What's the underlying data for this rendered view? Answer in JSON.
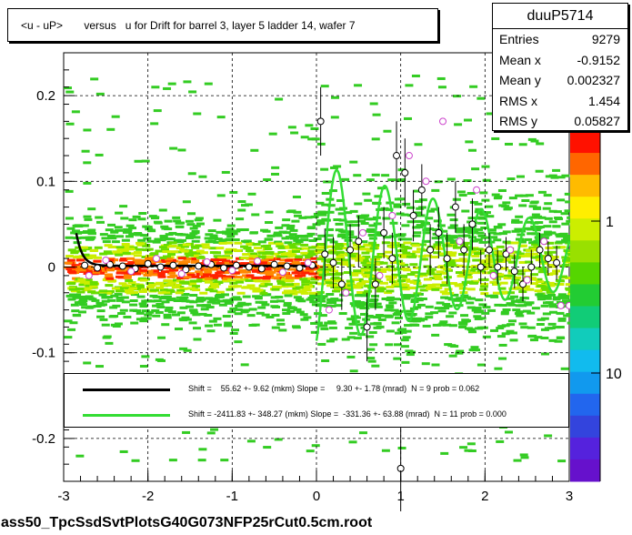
{
  "page": {
    "title": "<u - uP>       versus   u for Drift for barrel 3, layer 5 ladder 14, wafer 7",
    "footer": "ass50_TpcSsdSvtPlotsG40G073NFP25rCut0.5cm.root"
  },
  "stats": {
    "name": "duuP5714",
    "rows": [
      {
        "label": "Entries",
        "value": "9279"
      },
      {
        "label": "Mean x",
        "value": "-0.9152"
      },
      {
        "label": "Mean y",
        "value": "0.002327"
      },
      {
        "label": "RMS x",
        "value": "1.454"
      },
      {
        "label": "RMS y",
        "value": "0.05827"
      }
    ]
  },
  "legend": [
    {
      "color": "#000000",
      "text": "Shift =    55.62 +- 9.62 (mkm) Slope =     9.30 +- 1.78 (mrad)  N = 9 prob = 0.062"
    },
    {
      "color": "#33dd33",
      "text": "Shift = -2411.83 +- 348.27 (mkm) Slope =  -331.36 +- 63.88 (mrad)  N = 11 prob = 0.000"
    }
  ],
  "colors": {
    "black_fit": "#000000",
    "green_fit": "#33dd33",
    "profile_marker": "#cc44cc"
  },
  "chart_data": {
    "type": "scatter",
    "title": "<u - uP>       versus   u for Drift for barrel 3, layer 5 ladder 14, wafer 7",
    "xlabel": "",
    "ylabel": "",
    "xlim": [
      -3,
      3
    ],
    "ylim": [
      -0.25,
      0.25
    ],
    "x_ticks": [
      "-3",
      "-2",
      "-1",
      "0",
      "1",
      "2",
      "3"
    ],
    "y_ticks": [
      "-0.2",
      "-0.1",
      "0",
      "0.1",
      "0.2"
    ],
    "grid": true,
    "colorbar_ticks": [
      "1",
      "10"
    ],
    "colorbar_partial_label": "0",
    "profile_black": [
      {
        "x": -2.75,
        "y": 0.002,
        "e": 0.004
      },
      {
        "x": -2.6,
        "y": -0.001,
        "e": 0.003
      },
      {
        "x": -2.45,
        "y": 0.003,
        "e": 0.003
      },
      {
        "x": -2.3,
        "y": 0.001,
        "e": 0.003
      },
      {
        "x": -2.15,
        "y": -0.002,
        "e": 0.003
      },
      {
        "x": -2.0,
        "y": 0.004,
        "e": 0.003
      },
      {
        "x": -1.85,
        "y": 0.0,
        "e": 0.003
      },
      {
        "x": -1.7,
        "y": 0.002,
        "e": 0.003
      },
      {
        "x": -1.55,
        "y": -0.003,
        "e": 0.003
      },
      {
        "x": -1.4,
        "y": 0.001,
        "e": 0.003
      },
      {
        "x": -1.25,
        "y": 0.003,
        "e": 0.003
      },
      {
        "x": -1.1,
        "y": -0.001,
        "e": 0.003
      },
      {
        "x": -0.95,
        "y": 0.002,
        "e": 0.003
      },
      {
        "x": -0.8,
        "y": 0.0,
        "e": 0.003
      },
      {
        "x": -0.65,
        "y": -0.002,
        "e": 0.003
      },
      {
        "x": -0.5,
        "y": 0.003,
        "e": 0.003
      },
      {
        "x": -0.35,
        "y": 0.001,
        "e": 0.003
      },
      {
        "x": -0.2,
        "y": -0.001,
        "e": 0.003
      },
      {
        "x": -0.05,
        "y": 0.002,
        "e": 0.003
      },
      {
        "x": 0.05,
        "y": 0.17,
        "e": 0.04
      },
      {
        "x": 0.1,
        "y": 0.015,
        "e": 0.03
      },
      {
        "x": 0.2,
        "y": 0.005,
        "e": 0.03
      },
      {
        "x": 0.3,
        "y": -0.02,
        "e": 0.03
      },
      {
        "x": 0.4,
        "y": 0.02,
        "e": 0.03
      },
      {
        "x": 0.5,
        "y": 0.03,
        "e": 0.03
      },
      {
        "x": 0.6,
        "y": -0.07,
        "e": 0.04
      },
      {
        "x": 0.7,
        "y": -0.02,
        "e": 0.03
      },
      {
        "x": 0.8,
        "y": 0.04,
        "e": 0.03
      },
      {
        "x": 0.9,
        "y": 0.01,
        "e": 0.03
      },
      {
        "x": 0.95,
        "y": 0.13,
        "e": 0.04
      },
      {
        "x": 1.0,
        "y": -0.235,
        "e": 0.05
      },
      {
        "x": 1.05,
        "y": 0.11,
        "e": 0.04
      },
      {
        "x": 1.15,
        "y": 0.06,
        "e": 0.03
      },
      {
        "x": 1.25,
        "y": 0.09,
        "e": 0.03
      },
      {
        "x": 1.35,
        "y": 0.02,
        "e": 0.03
      },
      {
        "x": 1.45,
        "y": 0.04,
        "e": 0.03
      },
      {
        "x": 1.55,
        "y": 0.01,
        "e": 0.03
      },
      {
        "x": 1.65,
        "y": 0.07,
        "e": 0.03
      },
      {
        "x": 1.75,
        "y": 0.02,
        "e": 0.03
      },
      {
        "x": 1.85,
        "y": 0.05,
        "e": 0.03
      },
      {
        "x": 1.95,
        "y": 0.0,
        "e": 0.02
      },
      {
        "x": 2.05,
        "y": 0.02,
        "e": 0.02
      },
      {
        "x": 2.15,
        "y": 0.0,
        "e": 0.02
      },
      {
        "x": 2.25,
        "y": 0.015,
        "e": 0.02
      },
      {
        "x": 2.35,
        "y": -0.005,
        "e": 0.02
      },
      {
        "x": 2.45,
        "y": -0.02,
        "e": 0.02
      },
      {
        "x": 2.55,
        "y": 0.0,
        "e": 0.02
      },
      {
        "x": 2.65,
        "y": 0.02,
        "e": 0.02
      },
      {
        "x": 2.75,
        "y": 0.01,
        "e": 0.02
      },
      {
        "x": 2.85,
        "y": 0.005,
        "e": 0.02
      }
    ],
    "profile_magenta": [
      {
        "x": -2.7,
        "y": -0.01
      },
      {
        "x": -2.5,
        "y": 0.008
      },
      {
        "x": -2.2,
        "y": -0.005
      },
      {
        "x": -1.9,
        "y": 0.01
      },
      {
        "x": -1.6,
        "y": -0.008
      },
      {
        "x": -1.3,
        "y": 0.006
      },
      {
        "x": -1.0,
        "y": -0.004
      },
      {
        "x": -0.7,
        "y": 0.007
      },
      {
        "x": -0.4,
        "y": -0.006
      },
      {
        "x": -0.1,
        "y": 0.005
      },
      {
        "x": 0.15,
        "y": -0.05
      },
      {
        "x": 0.35,
        "y": -0.03
      },
      {
        "x": 0.55,
        "y": 0.04
      },
      {
        "x": 0.75,
        "y": -0.01
      },
      {
        "x": 0.9,
        "y": 0.06
      },
      {
        "x": 1.1,
        "y": 0.13
      },
      {
        "x": 1.3,
        "y": 0.1
      },
      {
        "x": 1.5,
        "y": 0.17
      },
      {
        "x": 1.7,
        "y": 0.03
      },
      {
        "x": 1.9,
        "y": 0.09
      },
      {
        "x": 2.1,
        "y": -0.01
      },
      {
        "x": 2.3,
        "y": 0.02
      },
      {
        "x": 2.5,
        "y": -0.015
      },
      {
        "x": 2.7,
        "y": 0.03
      },
      {
        "x": 2.9,
        "y": -0.045
      },
      {
        "x": 3.0,
        "y": -0.045
      }
    ],
    "fit_black": {
      "x_range": [
        -2.85,
        0.0
      ]
    },
    "fit_green": {
      "x_range": [
        0.0,
        3.0
      ]
    }
  }
}
